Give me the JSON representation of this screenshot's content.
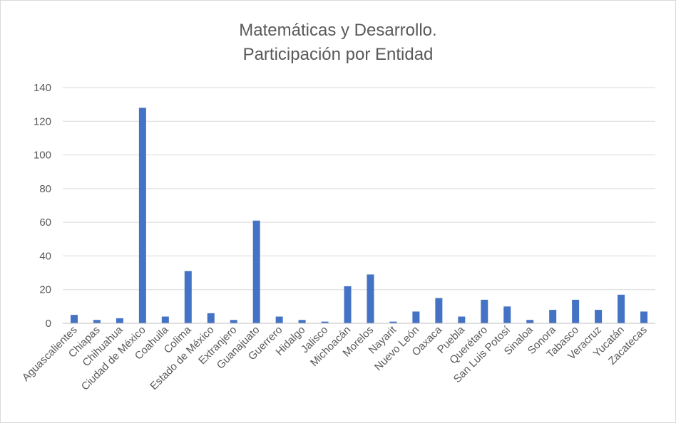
{
  "chart_data": {
    "type": "bar",
    "title_lines": [
      "Matemáticas y Desarrollo.",
      "Participación por Entidad"
    ],
    "categories": [
      "Aguascalientes",
      "Chiapas",
      "Chihuahua",
      "Ciudad de México",
      "Coahuila",
      "Colima",
      "Estado de México",
      "Extranjero",
      "Guanajuato",
      "Guerrero",
      "Hidalgo",
      "Jalisco",
      "Michoacán",
      "Morelos",
      "Nayarit",
      "Nuevo León",
      "Oaxaca",
      "Puebla",
      "Querétaro",
      "San Luis Potosí",
      "Sinaloa",
      "Sonora",
      "Tabasco",
      "Veracruz",
      "Yucatán",
      "Zacatecas"
    ],
    "values": [
      5,
      2,
      3,
      128,
      4,
      31,
      6,
      2,
      61,
      4,
      2,
      1,
      22,
      29,
      1,
      7,
      15,
      4,
      14,
      10,
      2,
      8,
      14,
      8,
      17,
      7
    ],
    "ylim": [
      0,
      140
    ],
    "yticks": [
      0,
      20,
      40,
      60,
      80,
      100,
      120,
      140
    ],
    "grid": true,
    "legend": "none",
    "bar_color": "#4472c4"
  }
}
